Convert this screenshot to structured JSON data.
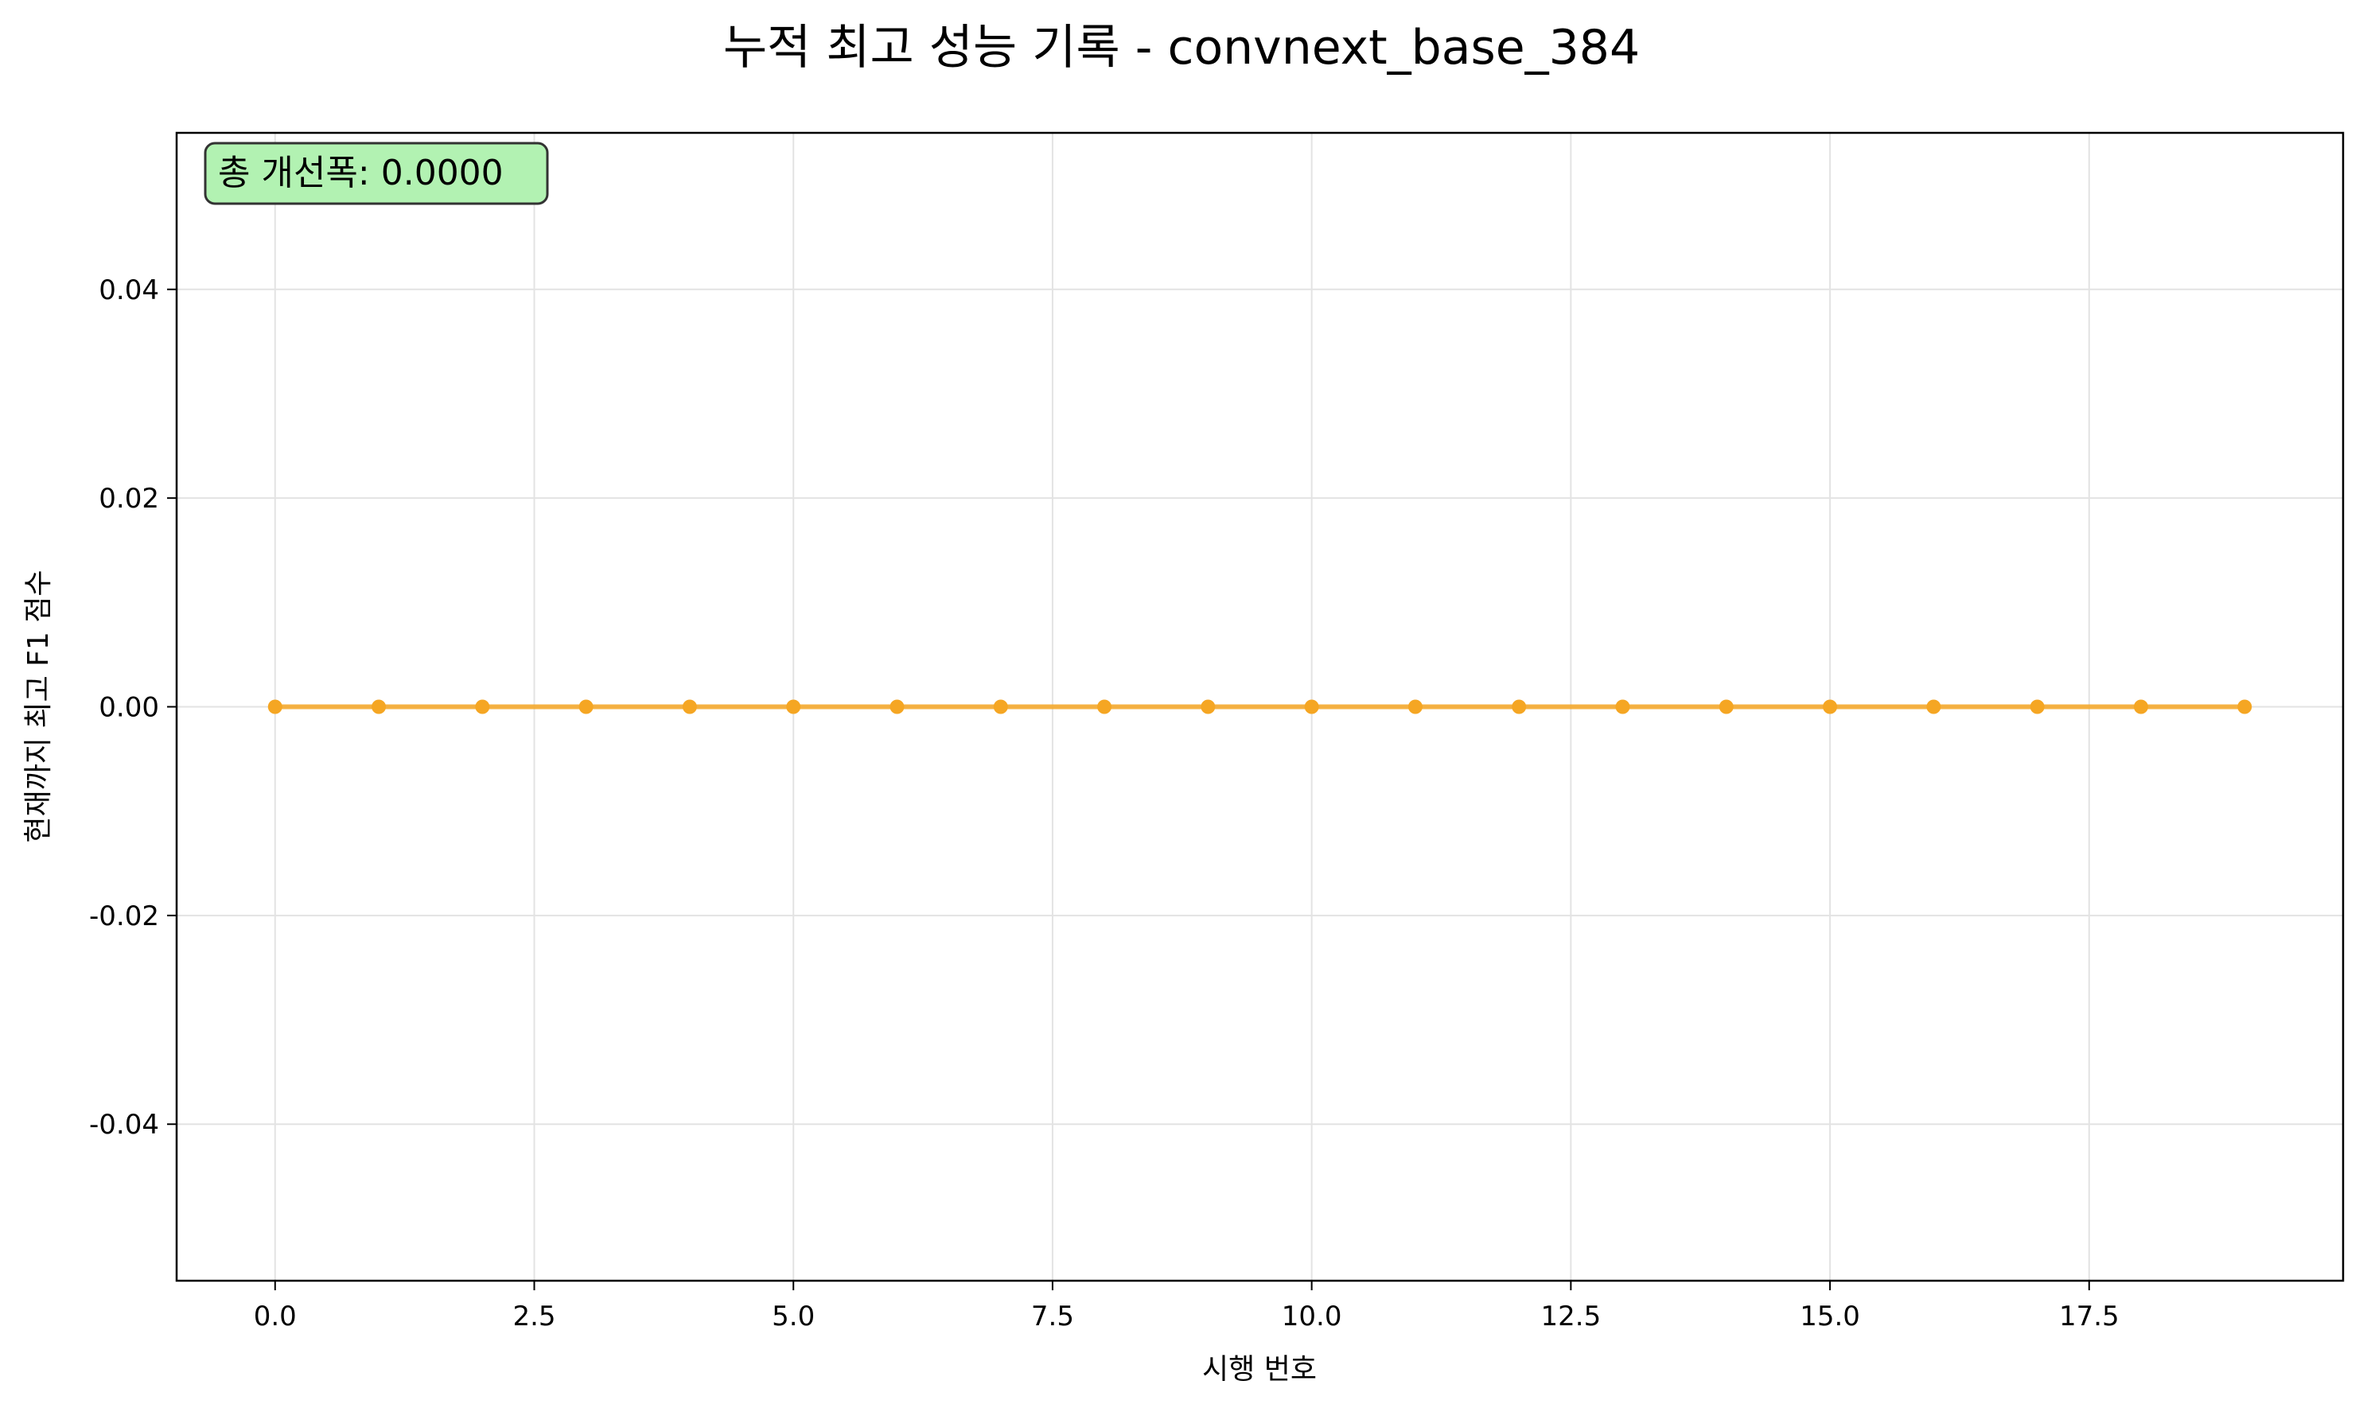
{
  "chart_data": {
    "type": "line",
    "title": "누적 최고 성능 기록 - convnext_base_384",
    "xlabel": "시행 번호",
    "ylabel": "현재까지 최고 F1 점수",
    "xlim": [
      -0.95,
      19.95
    ],
    "ylim": [
      -0.055,
      0.055
    ],
    "xticks": [
      0.0,
      2.5,
      5.0,
      7.5,
      10.0,
      12.5,
      15.0,
      17.5
    ],
    "xtick_labels": [
      "0.0",
      "2.5",
      "5.0",
      "7.5",
      "10.0",
      "12.5",
      "15.0",
      "17.5"
    ],
    "yticks": [
      -0.04,
      -0.02,
      0.0,
      0.02,
      0.04
    ],
    "ytick_labels": [
      "-0.04",
      "-0.02",
      "0.00",
      "0.02",
      "0.04"
    ],
    "grid": true,
    "series": [
      {
        "color": "#f5a623",
        "x": [
          0,
          1,
          2,
          3,
          4,
          5,
          6,
          7,
          8,
          9,
          10,
          11,
          12,
          13,
          14,
          15,
          16,
          17,
          18,
          19
        ],
        "y": [
          0,
          0,
          0,
          0,
          0,
          0,
          0,
          0,
          0,
          0,
          0,
          0,
          0,
          0,
          0,
          0,
          0,
          0,
          0,
          0
        ]
      }
    ],
    "annotation": {
      "text": "총 개선폭: 0.0000",
      "placement": "top-left",
      "background": "#b2f2b2"
    }
  }
}
